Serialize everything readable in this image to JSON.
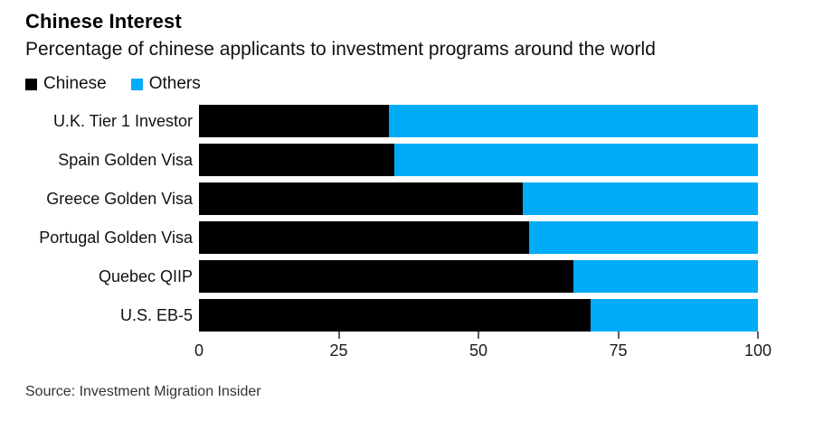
{
  "header": {
    "title": "Chinese Interest",
    "subtitle": "Percentage of chinese applicants to investment programs around the world"
  },
  "legend": [
    {
      "label": "Chinese",
      "color": "#000000"
    },
    {
      "label": "Others",
      "color": "#00acf7"
    }
  ],
  "chart_data": {
    "type": "bar",
    "stacked": true,
    "orientation": "horizontal",
    "title": "Chinese Interest",
    "subtitle": "Percentage of chinese applicants to investment programs around the world",
    "categories": [
      "U.K. Tier 1 Investor",
      "Spain Golden Visa",
      "Greece Golden Visa",
      "Portugal Golden Visa",
      "Quebec QIIP",
      "U.S. EB-5"
    ],
    "series": [
      {
        "name": "Chinese",
        "color": "#000000",
        "values": [
          34,
          35,
          58,
          59,
          67,
          70
        ]
      },
      {
        "name": "Others",
        "color": "#00acf7",
        "values": [
          66,
          65,
          42,
          41,
          33,
          30
        ]
      }
    ],
    "xlabel": "",
    "ylabel": "",
    "xlim": [
      0,
      100
    ],
    "x_ticks": [
      0,
      25,
      50,
      75,
      100
    ],
    "grid": false,
    "legend_position": "top-left"
  },
  "source": "Source: Investment Migration Insider"
}
